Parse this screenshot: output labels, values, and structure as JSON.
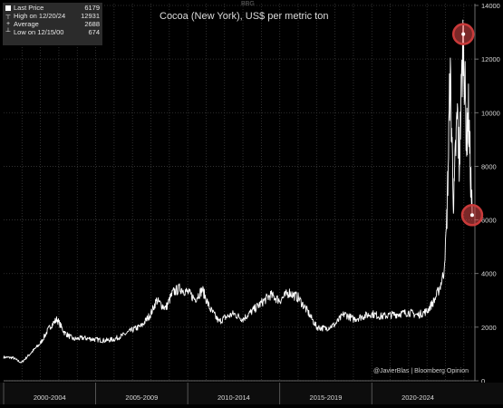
{
  "legend": {
    "items": [
      {
        "label": "Last Price",
        "value": "6179",
        "marker": "■"
      },
      {
        "label": "High on 12/20/24",
        "value": "12931",
        "marker": "┬"
      },
      {
        "label": "Average",
        "value": "2688",
        "marker": "+"
      },
      {
        "label": "Low on 12/15/00",
        "value": "674",
        "marker": "┴"
      }
    ]
  },
  "title": "Cocoa (New York), US$ per metric ton",
  "credit": "@JavierBlas | Bloomberg Opinion",
  "top_tag": "BBG",
  "colors": {
    "background": "#000000",
    "line": "#ffffff",
    "grid": "#3a3a3a",
    "highlight": "#e04848"
  },
  "chart_data": {
    "type": "line",
    "title": "Cocoa (New York), US$ per metric ton",
    "xlabel": "",
    "ylabel": "",
    "x_tick_labels": [
      "2000-2004",
      "2005-2009",
      "2010-2014",
      "2015-2019",
      "2020-2024"
    ],
    "y_ticks": [
      0,
      2000,
      4000,
      6000,
      8000,
      10000,
      12000,
      14000
    ],
    "y_tick_labels": [
      "0",
      "2000",
      "4000",
      "6000",
      "8000",
      "10000",
      "12000",
      "14000"
    ],
    "xlim": [
      2000.0,
      2025.6
    ],
    "ylim": [
      0,
      14000
    ],
    "grid": true,
    "legend_position": "top-left",
    "series": [
      {
        "name": "Last Price",
        "x": [
          2000.0,
          2000.5,
          2000.96,
          2001.5,
          2002.0,
          2002.5,
          2002.9,
          2003.3,
          2003.8,
          2004.3,
          2004.9,
          2005.5,
          2006.0,
          2006.5,
          2007.0,
          2007.5,
          2008.0,
          2008.3,
          2008.8,
          2009.2,
          2009.6,
          2010.0,
          2010.4,
          2010.8,
          2011.2,
          2011.7,
          2012.0,
          2012.5,
          2013.0,
          2013.5,
          2014.0,
          2014.5,
          2015.0,
          2015.5,
          2016.0,
          2016.5,
          2017.0,
          2017.5,
          2018.0,
          2018.5,
          2019.0,
          2019.5,
          2020.0,
          2020.5,
          2021.0,
          2021.5,
          2022.0,
          2022.5,
          2023.0,
          2023.4,
          2023.7,
          2023.9,
          2024.05,
          2024.15,
          2024.25,
          2024.35,
          2024.45,
          2024.55,
          2024.65,
          2024.75,
          2024.85,
          2024.97,
          2025.05,
          2025.15,
          2025.25,
          2025.35,
          2025.45
        ],
        "y": [
          880,
          860,
          674,
          1050,
          1400,
          2000,
          2300,
          1800,
          1550,
          1600,
          1550,
          1500,
          1550,
          1700,
          1900,
          2050,
          2500,
          3000,
          2700,
          3300,
          3450,
          3300,
          3050,
          3400,
          2700,
          2200,
          2350,
          2500,
          2300,
          2600,
          2900,
          3200,
          3000,
          3300,
          3100,
          2600,
          2000,
          1950,
          2100,
          2500,
          2300,
          2400,
          2500,
          2400,
          2450,
          2500,
          2550,
          2450,
          2600,
          3000,
          3500,
          4000,
          5500,
          8000,
          11500,
          9000,
          6500,
          8500,
          10000,
          8000,
          10500,
          12931,
          11000,
          9000,
          10000,
          8000,
          6179
        ]
      }
    ],
    "annotations": [
      {
        "label": "High on 12/20/24",
        "x": 2024.97,
        "y": 12931
      },
      {
        "label": "Last Price",
        "x": 2025.45,
        "y": 6179
      }
    ]
  }
}
